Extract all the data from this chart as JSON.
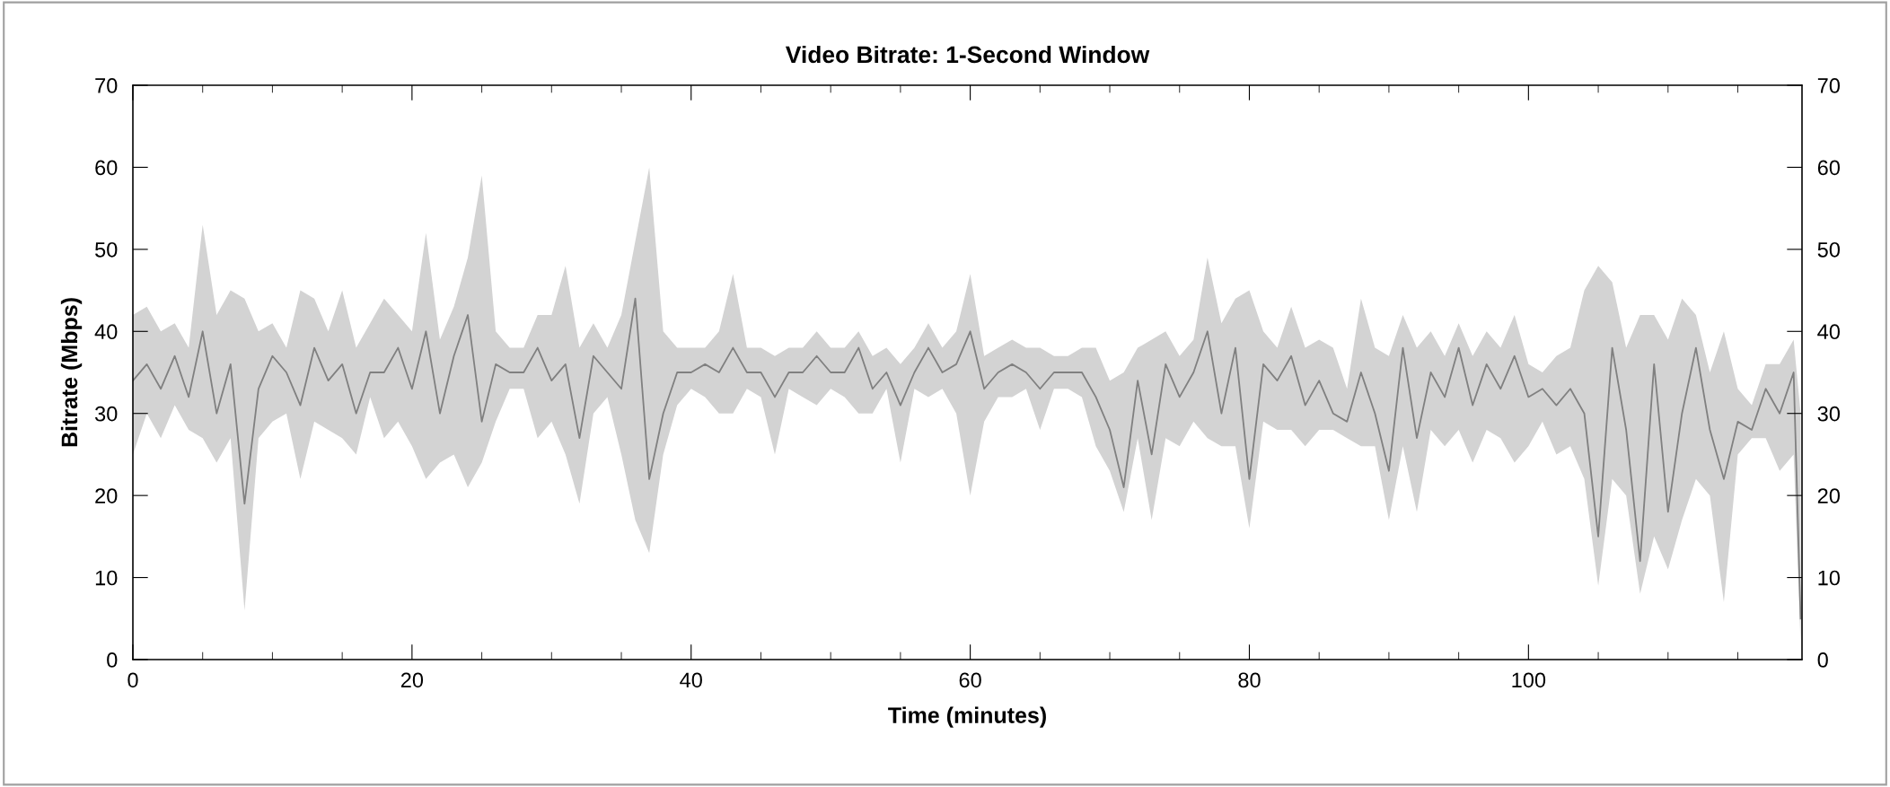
{
  "chart_data": {
    "type": "line",
    "title": "Video Bitrate: 1-Second Window",
    "xlabel": "Time (minutes)",
    "ylabel": "Bitrate (Mbps)",
    "xlim": [
      0,
      119.6
    ],
    "xticks": [
      0,
      20,
      40,
      60,
      80,
      100
    ],
    "ylim": [
      0,
      70
    ],
    "yticks": [
      0,
      10,
      20,
      30,
      40,
      50,
      60,
      70
    ],
    "y2lim": [
      0,
      70
    ],
    "y2ticks": [
      0,
      10,
      20,
      30,
      40,
      50,
      60,
      70
    ],
    "grid": false,
    "x": [
      0,
      1,
      2,
      3,
      4,
      5,
      6,
      7,
      8,
      9,
      10,
      11,
      12,
      13,
      14,
      15,
      16,
      17,
      18,
      19,
      20,
      21,
      22,
      23,
      24,
      25,
      26,
      27,
      28,
      29,
      30,
      31,
      32,
      33,
      34,
      35,
      36,
      37,
      38,
      39,
      40,
      41,
      42,
      43,
      44,
      45,
      46,
      47,
      48,
      49,
      50,
      51,
      52,
      53,
      54,
      55,
      56,
      57,
      58,
      59,
      60,
      61,
      62,
      63,
      64,
      65,
      66,
      67,
      68,
      69,
      70,
      71,
      72,
      73,
      74,
      75,
      76,
      77,
      78,
      79,
      80,
      81,
      82,
      83,
      84,
      85,
      86,
      87,
      88,
      89,
      90,
      91,
      92,
      93,
      94,
      95,
      96,
      97,
      98,
      99,
      100,
      101,
      102,
      103,
      104,
      105,
      106,
      107,
      108,
      109,
      110,
      111,
      112,
      113,
      114,
      115,
      116,
      117,
      118,
      119,
      119.5
    ],
    "series": [
      {
        "color": "#808080",
        "values": [
          34,
          36,
          33,
          37,
          32,
          40,
          30,
          36,
          19,
          33,
          37,
          35,
          31,
          38,
          34,
          36,
          30,
          35,
          35,
          38,
          33,
          40,
          30,
          37,
          42,
          29,
          36,
          35,
          35,
          38,
          34,
          36,
          27,
          37,
          35,
          33,
          44,
          22,
          30,
          35,
          35,
          36,
          35,
          38,
          35,
          35,
          32,
          35,
          35,
          37,
          35,
          35,
          38,
          33,
          35,
          31,
          35,
          38,
          35,
          36,
          40,
          33,
          35,
          36,
          35,
          33,
          35,
          35,
          35,
          32,
          28,
          21,
          34,
          25,
          36,
          32,
          35,
          40,
          30,
          38,
          22,
          36,
          34,
          37,
          31,
          34,
          30,
          29,
          35,
          30,
          23,
          38,
          27,
          35,
          32,
          38,
          31,
          36,
          33,
          37,
          32,
          33,
          31,
          33,
          30,
          15,
          38,
          28,
          12,
          36,
          18,
          30,
          38,
          28,
          22,
          29,
          28,
          33,
          30,
          35,
          5
        ],
        "upper": [
          42,
          43,
          40,
          41,
          38,
          53,
          42,
          45,
          44,
          40,
          41,
          38,
          45,
          44,
          40,
          45,
          38,
          41,
          44,
          42,
          40,
          52,
          39,
          43,
          49,
          59,
          40,
          38,
          38,
          42,
          42,
          48,
          38,
          41,
          38,
          42,
          51,
          60,
          40,
          38,
          38,
          38,
          40,
          47,
          38,
          38,
          37,
          38,
          38,
          40,
          38,
          38,
          40,
          37,
          38,
          36,
          38,
          41,
          38,
          40,
          47,
          37,
          38,
          39,
          38,
          38,
          37,
          37,
          38,
          38,
          34,
          35,
          38,
          39,
          40,
          37,
          39,
          49,
          41,
          44,
          45,
          40,
          38,
          43,
          38,
          39,
          38,
          33,
          44,
          38,
          37,
          42,
          38,
          40,
          37,
          41,
          37,
          40,
          38,
          42,
          36,
          35,
          37,
          38,
          45,
          48,
          46,
          38,
          42,
          42,
          39,
          44,
          42,
          35,
          40,
          33,
          31,
          36,
          36,
          39,
          30
        ],
        "lower": [
          25,
          30,
          27,
          31,
          28,
          27,
          24,
          27,
          6,
          27,
          29,
          30,
          22,
          29,
          28,
          27,
          25,
          32,
          27,
          29,
          26,
          22,
          24,
          25,
          21,
          24,
          29,
          33,
          33,
          27,
          29,
          25,
          19,
          30,
          32,
          25,
          17,
          13,
          25,
          31,
          33,
          32,
          30,
          30,
          33,
          32,
          25,
          33,
          32,
          31,
          33,
          32,
          30,
          30,
          33,
          24,
          33,
          32,
          33,
          30,
          20,
          29,
          32,
          32,
          33,
          28,
          33,
          33,
          32,
          26,
          23,
          18,
          27,
          17,
          27,
          26,
          29,
          27,
          26,
          26,
          16,
          29,
          28,
          28,
          26,
          28,
          28,
          27,
          26,
          26,
          17,
          26,
          18,
          28,
          26,
          28,
          24,
          28,
          27,
          24,
          26,
          29,
          25,
          26,
          22,
          9,
          22,
          20,
          8,
          15,
          11,
          17,
          22,
          20,
          7,
          25,
          27,
          27,
          23,
          25,
          2
        ]
      }
    ]
  }
}
